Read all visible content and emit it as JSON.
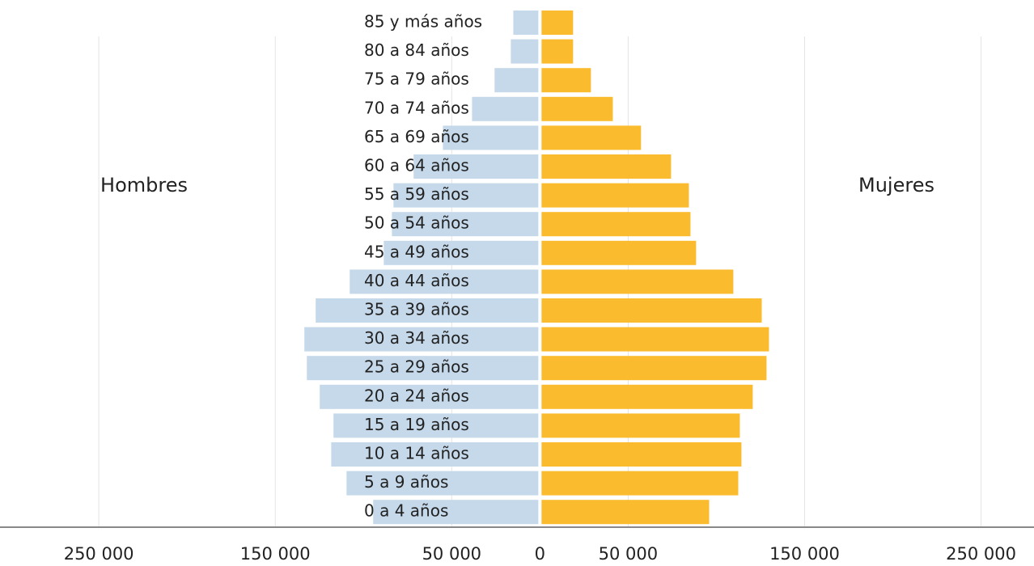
{
  "chart_data": {
    "type": "pyramid",
    "categories": [
      "85 y más años",
      "80 a 84 años",
      "75 a 79 años",
      "70 a 74 años",
      "65 a 69 años",
      "60 a 64 años",
      "55 a 59 años",
      "50 a 54 años",
      "45 a 49 años",
      "40 a 44 años",
      "35 a 39 años",
      "30 a 34 años",
      "25 a 29 años",
      "20 a 24 años",
      "15 a 19 años",
      "10 a 14 años",
      "5 a  9 años",
      "0 a 4 años"
    ],
    "series": [
      {
        "name": "Hombres",
        "color": "#c5d9ea",
        "side": "left",
        "values": [
          15100,
          16500,
          25700,
          38500,
          55000,
          71600,
          83000,
          83900,
          88500,
          107800,
          127100,
          133500,
          132100,
          124800,
          117000,
          118300,
          109600,
          94500
        ]
      },
      {
        "name": "Mujeres",
        "color": "#fbbb2f",
        "side": "right",
        "values": [
          18800,
          18800,
          28900,
          41300,
          57300,
          74300,
          84400,
          85300,
          88500,
          109600,
          125700,
          129800,
          128400,
          120600,
          113300,
          114200,
          112400,
          95900
        ]
      }
    ],
    "xlim": [
      -306000,
      280000
    ],
    "xticks": [
      {
        "value": -250000,
        "label": "250 000"
      },
      {
        "value": -150000,
        "label": "150 000"
      },
      {
        "value": -50000,
        "label": "50 000"
      },
      0,
      {
        "value": 50000,
        "label": "50 000"
      },
      {
        "value": 150000,
        "label": "150 000"
      },
      {
        "value": 250000,
        "label": "250 000"
      }
    ],
    "grid": true
  }
}
